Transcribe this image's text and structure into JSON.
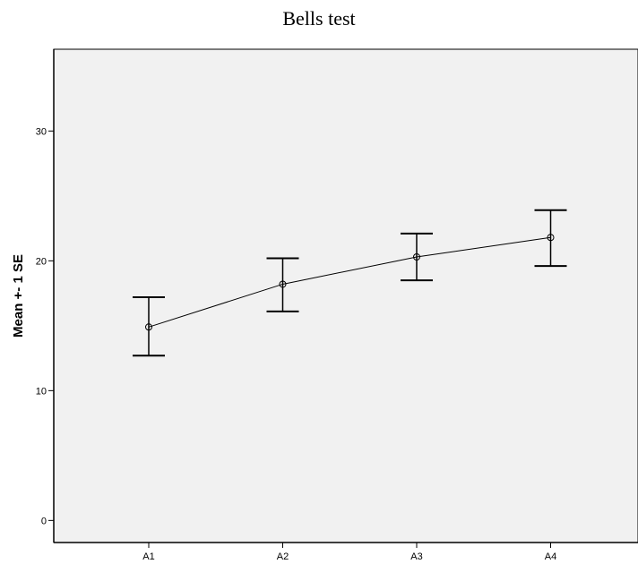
{
  "chart_data": {
    "type": "line",
    "title": "Bells test",
    "xlabel": "",
    "ylabel": "Mean +- 1 SE",
    "categories": [
      "A1",
      "A2",
      "A3",
      "A4"
    ],
    "series": [
      {
        "values": [
          14.9,
          18.2,
          20.3,
          21.8
        ],
        "error_lower": [
          12.7,
          16.1,
          18.5,
          19.6
        ],
        "error_upper": [
          17.2,
          20.2,
          22.1,
          23.9
        ]
      }
    ],
    "ylim": [
      -1.7,
      36.3
    ],
    "yticks": [
      0,
      10,
      20,
      30
    ],
    "grid": false,
    "legend": "none",
    "colors": {
      "plot_background": "#f1f1f1",
      "line": "#000000",
      "axis": "#000000"
    }
  }
}
